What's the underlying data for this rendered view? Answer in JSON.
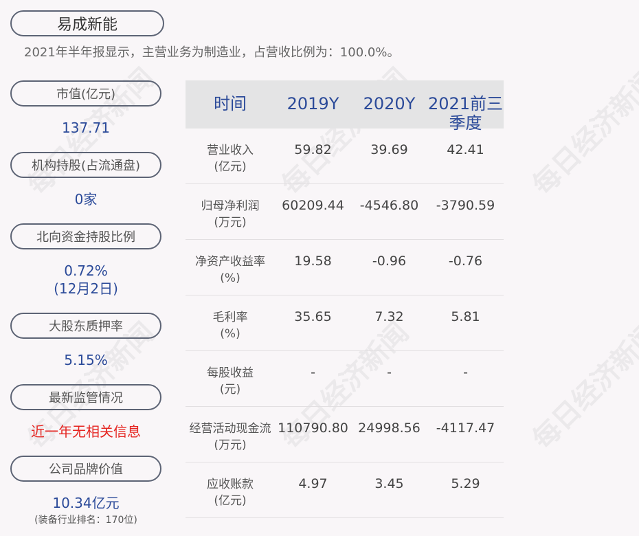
{
  "company": "易成新能",
  "summary": "2021年半年报显示，主营业务为制造业，占营收比例为：100.0%。",
  "left": [
    {
      "label": "市值(亿元)",
      "value": "137.71"
    },
    {
      "label": "机构持股(占流通盘)",
      "value": "0家"
    },
    {
      "label": "北向资金持股比例",
      "value": "0.72%",
      "value2": "(12月2日)"
    },
    {
      "label": "大股东质押率",
      "value": "5.15%"
    },
    {
      "label": "最新监管情况",
      "value": "近一年无相关信息"
    },
    {
      "label": "公司品牌价值",
      "value": "10.34亿元",
      "note": "(装备行业排名：170位)"
    }
  ],
  "table": {
    "headers": [
      "时间",
      "2019Y",
      "2020Y",
      "2021前三季度"
    ],
    "rows": [
      {
        "label": "营业收入",
        "unit": "(亿元)",
        "values": [
          "59.82",
          "39.69",
          "42.41"
        ]
      },
      {
        "label": "归母净利润",
        "unit": "(万元)",
        "values": [
          "60209.44",
          "-4546.80",
          "-3790.59"
        ]
      },
      {
        "label": "净资产收益率",
        "unit": "(%)",
        "values": [
          "19.58",
          "-0.96",
          "-0.76"
        ]
      },
      {
        "label": "毛利率",
        "unit": "(%)",
        "values": [
          "35.65",
          "7.32",
          "5.81"
        ]
      },
      {
        "label": "每股收益",
        "unit": "(元)",
        "values": [
          "-",
          "-",
          "-"
        ]
      },
      {
        "label": "经营活动现金流",
        "unit": "(万元)",
        "values": [
          "110790.80",
          "24998.56",
          "-4117.47"
        ]
      },
      {
        "label": "应收账款",
        "unit": "(亿元)",
        "values": [
          "4.97",
          "3.45",
          "5.29"
        ]
      }
    ]
  },
  "watermark": "每日经济新闻",
  "colors": {
    "accent": "#2b4a99",
    "alert": "#e52420"
  }
}
